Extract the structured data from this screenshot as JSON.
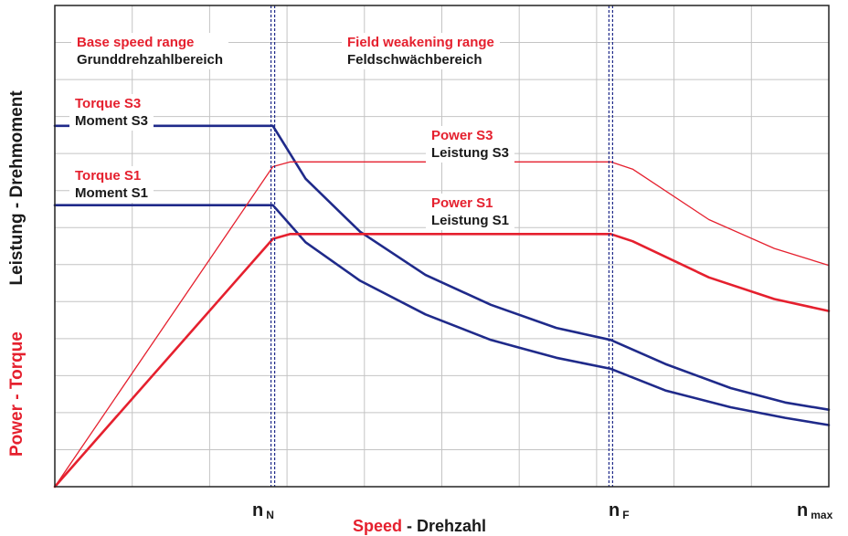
{
  "chart_data": {
    "type": "line",
    "ylabel_red": "Power - Torque",
    "ylabel_black": "Leistung - Drehmoment",
    "xlabel_red": "Speed",
    "xlabel_black": "Drehzahl",
    "x_ticks": [
      {
        "main": "n",
        "sub": "N",
        "x": 1.0
      },
      {
        "main": "n",
        "sub": "F",
        "x": 2.55
      },
      {
        "main": "n",
        "sub": "max",
        "x": 3.55
      }
    ],
    "xlim": [
      0,
      3.55
    ],
    "ylim": [
      0,
      1.0
    ],
    "grid": true,
    "regions": [
      {
        "label": "Base speed range",
        "label_de": "Grunddrehzahlbereich"
      },
      {
        "label": "Field weakening range",
        "label_de": "Feldschwächbereich"
      }
    ],
    "series": [
      {
        "name": "Torque S3",
        "name_de": "Moment S3",
        "color": "#1f2a8a",
        "x": [
          0,
          1.0,
          1.15,
          1.4,
          1.7,
          2.0,
          2.3,
          2.55,
          2.8,
          3.1,
          3.35,
          3.55
        ],
        "y": [
          0.75,
          0.75,
          0.64,
          0.53,
          0.44,
          0.378,
          0.33,
          0.305,
          0.255,
          0.205,
          0.175,
          0.16
        ]
      },
      {
        "name": "Torque S1",
        "name_de": "Moment S1",
        "color": "#1f2a8a",
        "x": [
          0,
          1.0,
          1.15,
          1.4,
          1.7,
          2.0,
          2.3,
          2.55,
          2.8,
          3.1,
          3.35,
          3.55
        ],
        "y": [
          0.585,
          0.585,
          0.508,
          0.428,
          0.358,
          0.305,
          0.268,
          0.245,
          0.2,
          0.165,
          0.143,
          0.128
        ]
      },
      {
        "name": "Power S3",
        "name_de": "Leistung S3",
        "color": "#e5202e",
        "x": [
          0,
          1.0,
          1.08,
          2.55,
          2.65,
          3.0,
          3.3,
          3.55
        ],
        "y": [
          0,
          0.665,
          0.675,
          0.675,
          0.66,
          0.555,
          0.495,
          0.46
        ]
      },
      {
        "name": "Power S1",
        "name_de": "Leistung S1",
        "color": "#e5202e",
        "x": [
          0,
          1.0,
          1.08,
          2.55,
          2.65,
          3.0,
          3.3,
          3.55
        ],
        "y": [
          0,
          0.515,
          0.525,
          0.525,
          0.51,
          0.435,
          0.39,
          0.365
        ]
      }
    ]
  }
}
